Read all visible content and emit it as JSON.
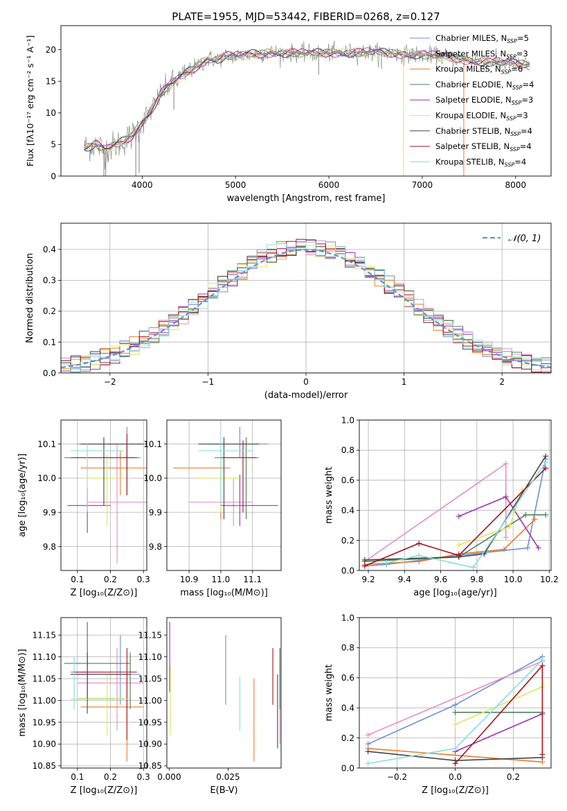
{
  "figure_title": "PLATE=1955, MJD=53442, FIBERID=0268, z=0.127",
  "colors": {
    "c0": "#6a8fd8",
    "c1": "#e58cc4",
    "c2": "#e87c2a",
    "c3": "#4f7d5a",
    "c4": "#9b32b0",
    "c5": "#dde85a",
    "c6": "#444444",
    "c7": "#a5131e",
    "c8": "#86dede"
  },
  "chart_data": [
    {
      "id": "spectrum",
      "type": "line",
      "title": "PLATE=1955, MJD=53442, FIBERID=0268, z=0.127",
      "xlabel": "wavelength [Angstrom, rest frame]",
      "ylabel": "Flux [fλ10⁻¹⁷ erg cm⁻² s⁻¹ A⁻¹]",
      "xlim": [
        3130,
        8380
      ],
      "ylim": [
        0,
        23.8
      ],
      "xticks": [
        4000,
        5000,
        6000,
        7000,
        8000
      ],
      "yticks": [
        0,
        5,
        10,
        15,
        20
      ],
      "grid": false,
      "legend_position": "right",
      "legend": [
        {
          "label": "Chabrier MILES, N",
          "sub": "SSP",
          "eq": "=5"
        },
        {
          "label": "Salpeter MILES, N",
          "sub": "SSP",
          "eq": "=3"
        },
        {
          "label": "Kroupa MILES, N",
          "sub": "SSP",
          "eq": "=6"
        },
        {
          "label": "Chabrier ELODIE, N",
          "sub": "SSP",
          "eq": "=4"
        },
        {
          "label": "Salpeter ELODIE, N",
          "sub": "SSP",
          "eq": "=3"
        },
        {
          "label": "Kroupa ELODIE, N",
          "sub": "SSP",
          "eq": "=3"
        },
        {
          "label": "Chabrier STELIB, N",
          "sub": "SSP",
          "eq": "=4"
        },
        {
          "label": "Salpeter STELIB, N",
          "sub": "SSP",
          "eq": "=4"
        },
        {
          "label": "Kroupa STELIB, N",
          "sub": "SSP",
          "eq": "=4"
        }
      ],
      "continuum": {
        "x": [
          3380,
          3500,
          3600,
          3700,
          3800,
          3900,
          4000,
          4100,
          4200,
          4300,
          4400,
          4500,
          4600,
          4700,
          4800,
          4900,
          5000,
          5200,
          5400,
          5600,
          5800,
          6000,
          6200,
          6400,
          6600,
          6800,
          7000,
          7200,
          7400,
          7600,
          7800,
          8000,
          8150
        ],
        "y": [
          4.5,
          5.0,
          4.2,
          4.8,
          5.5,
          6.5,
          8.5,
          10.5,
          13.0,
          14.5,
          15.5,
          16.5,
          17.5,
          18.5,
          18.5,
          19.0,
          19.0,
          19.3,
          19.5,
          19.5,
          19.4,
          19.5,
          19.5,
          19.6,
          19.5,
          19.3,
          19.2,
          19.0,
          18.5,
          18.2,
          18.0,
          17.8,
          17.5
        ]
      },
      "dips": [
        {
          "x": 3590,
          "y": 0
        },
        {
          "x": 3610,
          "y": 0
        },
        {
          "x": 3932,
          "y": 0
        },
        {
          "x": 3968,
          "y": 0.5
        },
        {
          "x": 4340,
          "y": 10.5
        },
        {
          "x": 5890,
          "y": 16.0
        },
        {
          "x": 6563,
          "y": 17.0
        },
        {
          "x": 6800,
          "y": 0
        },
        {
          "x": 7445,
          "y": 0
        }
      ]
    },
    {
      "id": "residuals",
      "type": "step",
      "xlabel": "(data-model)/error",
      "ylabel": "Normed distribution",
      "xlim": [
        -2.5,
        2.5
      ],
      "ylim": [
        0,
        0.485
      ],
      "xticks": [
        -2,
        -1,
        0,
        1,
        2
      ],
      "yticks": [
        0.0,
        0.1,
        0.2,
        0.3,
        0.4
      ],
      "grid": true,
      "legend_position": "upper right",
      "legend": [
        {
          "label": "𝒩(0, 1)"
        }
      ],
      "normal_curve": {
        "mu": 0,
        "sigma": 1
      }
    },
    {
      "id": "age-vs-Z",
      "type": "errorbar",
      "xlabel": "Z [log₁₀(Z/Z⊙)]",
      "ylabel": "age  [log₁₀(age/yr)]",
      "xlim": [
        0.05,
        0.31
      ],
      "ylim": [
        9.73,
        10.17
      ],
      "xticks": [
        0.1,
        0.2,
        0.3
      ],
      "yticks": [
        9.8,
        9.9,
        10.0,
        10.1
      ],
      "grid": true,
      "points": [
        {
          "c": "c0",
          "x": 0.25,
          "y": 10.1,
          "xerr": [
            0.1,
            0.31
          ],
          "yerr": [
            10.05,
            10.15
          ]
        },
        {
          "c": "c1",
          "x": 0.22,
          "y": 9.93,
          "xerr": [
            0.13,
            0.31
          ],
          "yerr": [
            9.75,
            10.1
          ]
        },
        {
          "c": "c2",
          "x": 0.23,
          "y": 10.03,
          "xerr": [
            0.11,
            0.31
          ],
          "yerr": [
            9.95,
            10.08
          ]
        },
        {
          "c": "c3",
          "x": 0.25,
          "y": 10.06,
          "xerr": [
            0.06,
            0.29
          ],
          "yerr": [
            9.95,
            10.1
          ]
        },
        {
          "c": "c4",
          "x": 0.13,
          "y": 9.92,
          "xerr": [
            0.07,
            0.2
          ],
          "yerr": [
            9.84,
            9.97
          ]
        },
        {
          "c": "c5",
          "x": 0.19,
          "y": 10.0,
          "xerr": [
            0.12,
            0.23
          ],
          "yerr": [
            9.86,
            10.07
          ]
        },
        {
          "c": "c6",
          "x": 0.18,
          "y": 10.1,
          "xerr": [
            0.11,
            0.3
          ],
          "yerr": [
            9.92,
            10.12
          ]
        },
        {
          "c": "c7",
          "x": 0.25,
          "y": 10.06,
          "xerr": [
            0.08,
            0.28
          ],
          "yerr": [
            9.95,
            10.13
          ]
        },
        {
          "c": "c8",
          "x": 0.13,
          "y": 10.08,
          "xerr": [
            0.08,
            0.24
          ],
          "yerr": [
            9.9,
            10.1
          ]
        }
      ]
    },
    {
      "id": "age-vs-mass",
      "type": "errorbar",
      "xlabel": "mass [log₁₀(M/M⊙)]",
      "ylabel": "",
      "xlim": [
        10.83,
        11.19
      ],
      "ylim": [
        9.73,
        10.17
      ],
      "xticks": [
        10.9,
        11.0,
        11.1
      ],
      "yticks": [
        9.8,
        9.9,
        10.0,
        10.1
      ],
      "grid": true,
      "points": [
        {
          "c": "c0",
          "x": 11.06,
          "y": 10.1,
          "xerr": [
            10.95,
            11.15
          ],
          "yerr": [
            10.06,
            10.15
          ]
        },
        {
          "c": "c1",
          "x": 11.04,
          "y": 9.93,
          "xerr": [
            10.9,
            11.1
          ],
          "yerr": [
            9.86,
            10.0
          ]
        },
        {
          "c": "c2",
          "x": 11.0,
          "y": 10.03,
          "xerr": [
            10.85,
            11.03
          ],
          "yerr": [
            9.88,
            10.06
          ]
        },
        {
          "c": "c3",
          "x": 11.08,
          "y": 10.06,
          "xerr": [
            10.98,
            11.12
          ],
          "yerr": [
            9.88,
            10.12
          ]
        },
        {
          "c": "c4",
          "x": 11.06,
          "y": 9.92,
          "xerr": [
            11.0,
            11.18
          ],
          "yerr": [
            9.86,
            10.01
          ]
        },
        {
          "c": "c5",
          "x": 11.0,
          "y": 10.0,
          "xerr": [
            10.92,
            11.06
          ],
          "yerr": [
            9.9,
            10.07
          ]
        },
        {
          "c": "c6",
          "x": 11.01,
          "y": 10.1,
          "xerr": [
            10.93,
            11.12
          ],
          "yerr": [
            9.88,
            10.12
          ]
        },
        {
          "c": "c7",
          "x": 11.07,
          "y": 10.06,
          "xerr": [
            11.0,
            11.11
          ],
          "yerr": [
            9.9,
            10.11
          ]
        },
        {
          "c": "c8",
          "x": 11.0,
          "y": 10.08,
          "xerr": [
            10.93,
            11.1
          ],
          "yerr": [
            9.92,
            10.12
          ]
        }
      ]
    },
    {
      "id": "weight-vs-age",
      "type": "line",
      "xlabel": "age  [log₁₀(age/yr)]",
      "ylabel": "mass weight",
      "xlim": [
        9.15,
        10.21
      ],
      "ylim": [
        0,
        1.0
      ],
      "xticks": [
        9.2,
        9.4,
        9.6,
        9.8,
        10.0,
        10.2
      ],
      "yticks": [
        0.0,
        0.2,
        0.4,
        0.6,
        0.8,
        1.0
      ],
      "grid": true,
      "series": [
        {
          "c": "c0",
          "x": [
            9.18,
            9.3,
            9.7,
            10.08,
            10.18
          ],
          "y": [
            0.03,
            0.04,
            0.1,
            0.15,
            0.74
          ]
        },
        {
          "c": "c1",
          "x": [
            9.18,
            9.96,
            9.96
          ],
          "y": [
            0.06,
            0.71,
            0.22
          ]
        },
        {
          "c": "c2",
          "x": [
            9.18,
            9.48,
            9.7,
            9.95,
            10.12
          ],
          "y": [
            0.04,
            0.06,
            0.11,
            0.14,
            0.34
          ]
        },
        {
          "c": "c3",
          "x": [
            9.18,
            9.7,
            10.07,
            10.18
          ],
          "y": [
            0.06,
            0.09,
            0.37,
            0.37
          ]
        },
        {
          "c": "c4",
          "x": [
            9.7,
            9.96,
            10.14
          ],
          "y": [
            0.36,
            0.49,
            0.15
          ]
        },
        {
          "c": "c5",
          "x": [
            9.7,
            9.98,
            10.05
          ],
          "y": [
            0.17,
            0.29,
            0.54
          ]
        },
        {
          "c": "c6",
          "x": [
            9.18,
            9.7,
            9.84,
            10.18
          ],
          "y": [
            0.07,
            0.09,
            0.11,
            0.76
          ]
        },
        {
          "c": "c7",
          "x": [
            9.18,
            9.48,
            9.7,
            10.18
          ],
          "y": [
            0.03,
            0.18,
            0.1,
            0.68
          ]
        },
        {
          "c": "c8",
          "x": [
            9.3,
            9.48,
            9.78,
            10.18
          ],
          "y": [
            0.05,
            0.1,
            0.02,
            0.72
          ]
        }
      ]
    },
    {
      "id": "mass-vs-Z",
      "type": "errorbar",
      "xlabel": "Z [log₁₀(Z/Z⊙)]",
      "ylabel": "mass [log₁₀(M/M⊙)]",
      "xlim": [
        0.05,
        0.31
      ],
      "ylim": [
        10.845,
        11.19
      ],
      "xticks": [
        0.1,
        0.2,
        0.3
      ],
      "yticks": [
        10.85,
        10.9,
        10.95,
        11.0,
        11.05,
        11.1,
        11.15
      ],
      "grid": true,
      "points": [
        {
          "c": "c0",
          "x": 0.23,
          "y": 11.06,
          "xerr": [
            0.08,
            0.29
          ],
          "yerr": [
            10.99,
            11.15
          ]
        },
        {
          "c": "c1",
          "x": 0.22,
          "y": 11.04,
          "xerr": [
            0.1,
            0.3
          ],
          "yerr": [
            10.93,
            11.12
          ]
        },
        {
          "c": "c2",
          "x": 0.25,
          "y": 10.985,
          "xerr": [
            0.11,
            0.3
          ],
          "yerr": [
            10.86,
            11.05
          ]
        },
        {
          "c": "c3",
          "x": 0.26,
          "y": 11.085,
          "xerr": [
            0.06,
            0.26
          ],
          "yerr": [
            10.98,
            11.11
          ]
        },
        {
          "c": "c4",
          "x": 0.13,
          "y": 11.065,
          "xerr": [
            0.08,
            0.2
          ],
          "yerr": [
            11.0,
            11.18
          ]
        },
        {
          "c": "c5",
          "x": 0.19,
          "y": 11.005,
          "xerr": [
            0.1,
            0.24
          ],
          "yerr": [
            10.92,
            11.06
          ]
        },
        {
          "c": "c6",
          "x": 0.13,
          "y": 11.06,
          "xerr": [
            0.08,
            0.26
          ],
          "yerr": [
            10.97,
            11.11
          ]
        },
        {
          "c": "c7",
          "x": 0.25,
          "y": 11.065,
          "xerr": [
            0.09,
            0.28
          ],
          "yerr": [
            10.91,
            11.12
          ]
        },
        {
          "c": "c8",
          "x": 0.09,
          "y": 11.003,
          "xerr": [
            0.08,
            0.26
          ],
          "yerr": [
            10.98,
            11.1
          ]
        }
      ]
    },
    {
      "id": "mass-vs-ebv",
      "type": "errorbar",
      "xlabel": "E(B-V)",
      "ylabel": "",
      "xlim": [
        -0.001,
        0.0475
      ],
      "ylim": [
        10.845,
        11.19
      ],
      "xticks": [
        0.0,
        0.025
      ],
      "yticks": [
        10.85,
        10.9,
        10.95,
        11.0,
        11.05,
        11.1,
        11.15
      ],
      "grid": false,
      "points": [
        {
          "c": "c0",
          "x": 0.024,
          "y": 11.07,
          "yerr": [
            10.99,
            11.15
          ]
        },
        {
          "c": "c1",
          "x": 0.047,
          "y": 11.01,
          "yerr": [
            10.9,
            11.12
          ]
        },
        {
          "c": "c2",
          "x": 0.036,
          "y": 10.96,
          "yerr": [
            10.86,
            11.05
          ]
        },
        {
          "c": "c3",
          "x": 0.047,
          "y": 11.07,
          "yerr": [
            10.98,
            11.12
          ]
        },
        {
          "c": "c4",
          "x": 0.0002,
          "y": 11.1,
          "yerr": [
            11.02,
            11.18
          ]
        },
        {
          "c": "c5",
          "x": 0.0005,
          "y": 11.0,
          "yerr": [
            10.92,
            11.08
          ]
        },
        {
          "c": "c6",
          "x": 0.046,
          "y": 10.95,
          "yerr": [
            10.89,
            11.06
          ]
        },
        {
          "c": "c7",
          "x": 0.044,
          "y": 11.05,
          "yerr": [
            10.99,
            11.12
          ]
        },
        {
          "c": "c8",
          "x": 0.03,
          "y": 10.99,
          "yerr": [
            10.93,
            11.055
          ]
        }
      ]
    },
    {
      "id": "weight-vs-Z",
      "type": "line",
      "xlabel": "Z [log₁₀(Z/Z⊙)]",
      "ylabel": "mass weight",
      "xlim": [
        -0.33,
        0.33
      ],
      "ylim": [
        0,
        1.0
      ],
      "xticks": [
        -0.2,
        0.0,
        0.2
      ],
      "yticks": [
        0.0,
        0.2,
        0.4,
        0.6,
        0.8,
        1.0
      ],
      "grid": true,
      "series": [
        {
          "c": "c0",
          "x": [
            -0.3,
            0.0,
            0.3
          ],
          "y": [
            0.16,
            0.42,
            0.74
          ]
        },
        {
          "c": "c1",
          "x": [
            -0.3,
            0.3
          ],
          "y": [
            0.22,
            0.71
          ]
        },
        {
          "c": "c2",
          "x": [
            -0.3,
            0.3
          ],
          "y": [
            0.13,
            0.04
          ]
        },
        {
          "c": "c3",
          "x": [
            0.0,
            0.3
          ],
          "y": [
            0.37,
            0.37
          ]
        },
        {
          "c": "c4",
          "x": [
            0.0,
            0.3
          ],
          "y": [
            0.11,
            0.36
          ]
        },
        {
          "c": "c5",
          "x": [
            0.0,
            0.3
          ],
          "y": [
            0.29,
            0.54
          ]
        },
        {
          "c": "c6",
          "x": [
            -0.3,
            0.0,
            0.3
          ],
          "y": [
            0.11,
            0.05,
            0.07
          ]
        },
        {
          "c": "c7",
          "x": [
            0.0,
            0.3,
            0.3
          ],
          "y": [
            0.03,
            0.68,
            0.09
          ]
        },
        {
          "c": "c8",
          "x": [
            -0.3,
            0.0,
            0.3
          ],
          "y": [
            0.03,
            0.13,
            0.72
          ]
        }
      ]
    }
  ]
}
